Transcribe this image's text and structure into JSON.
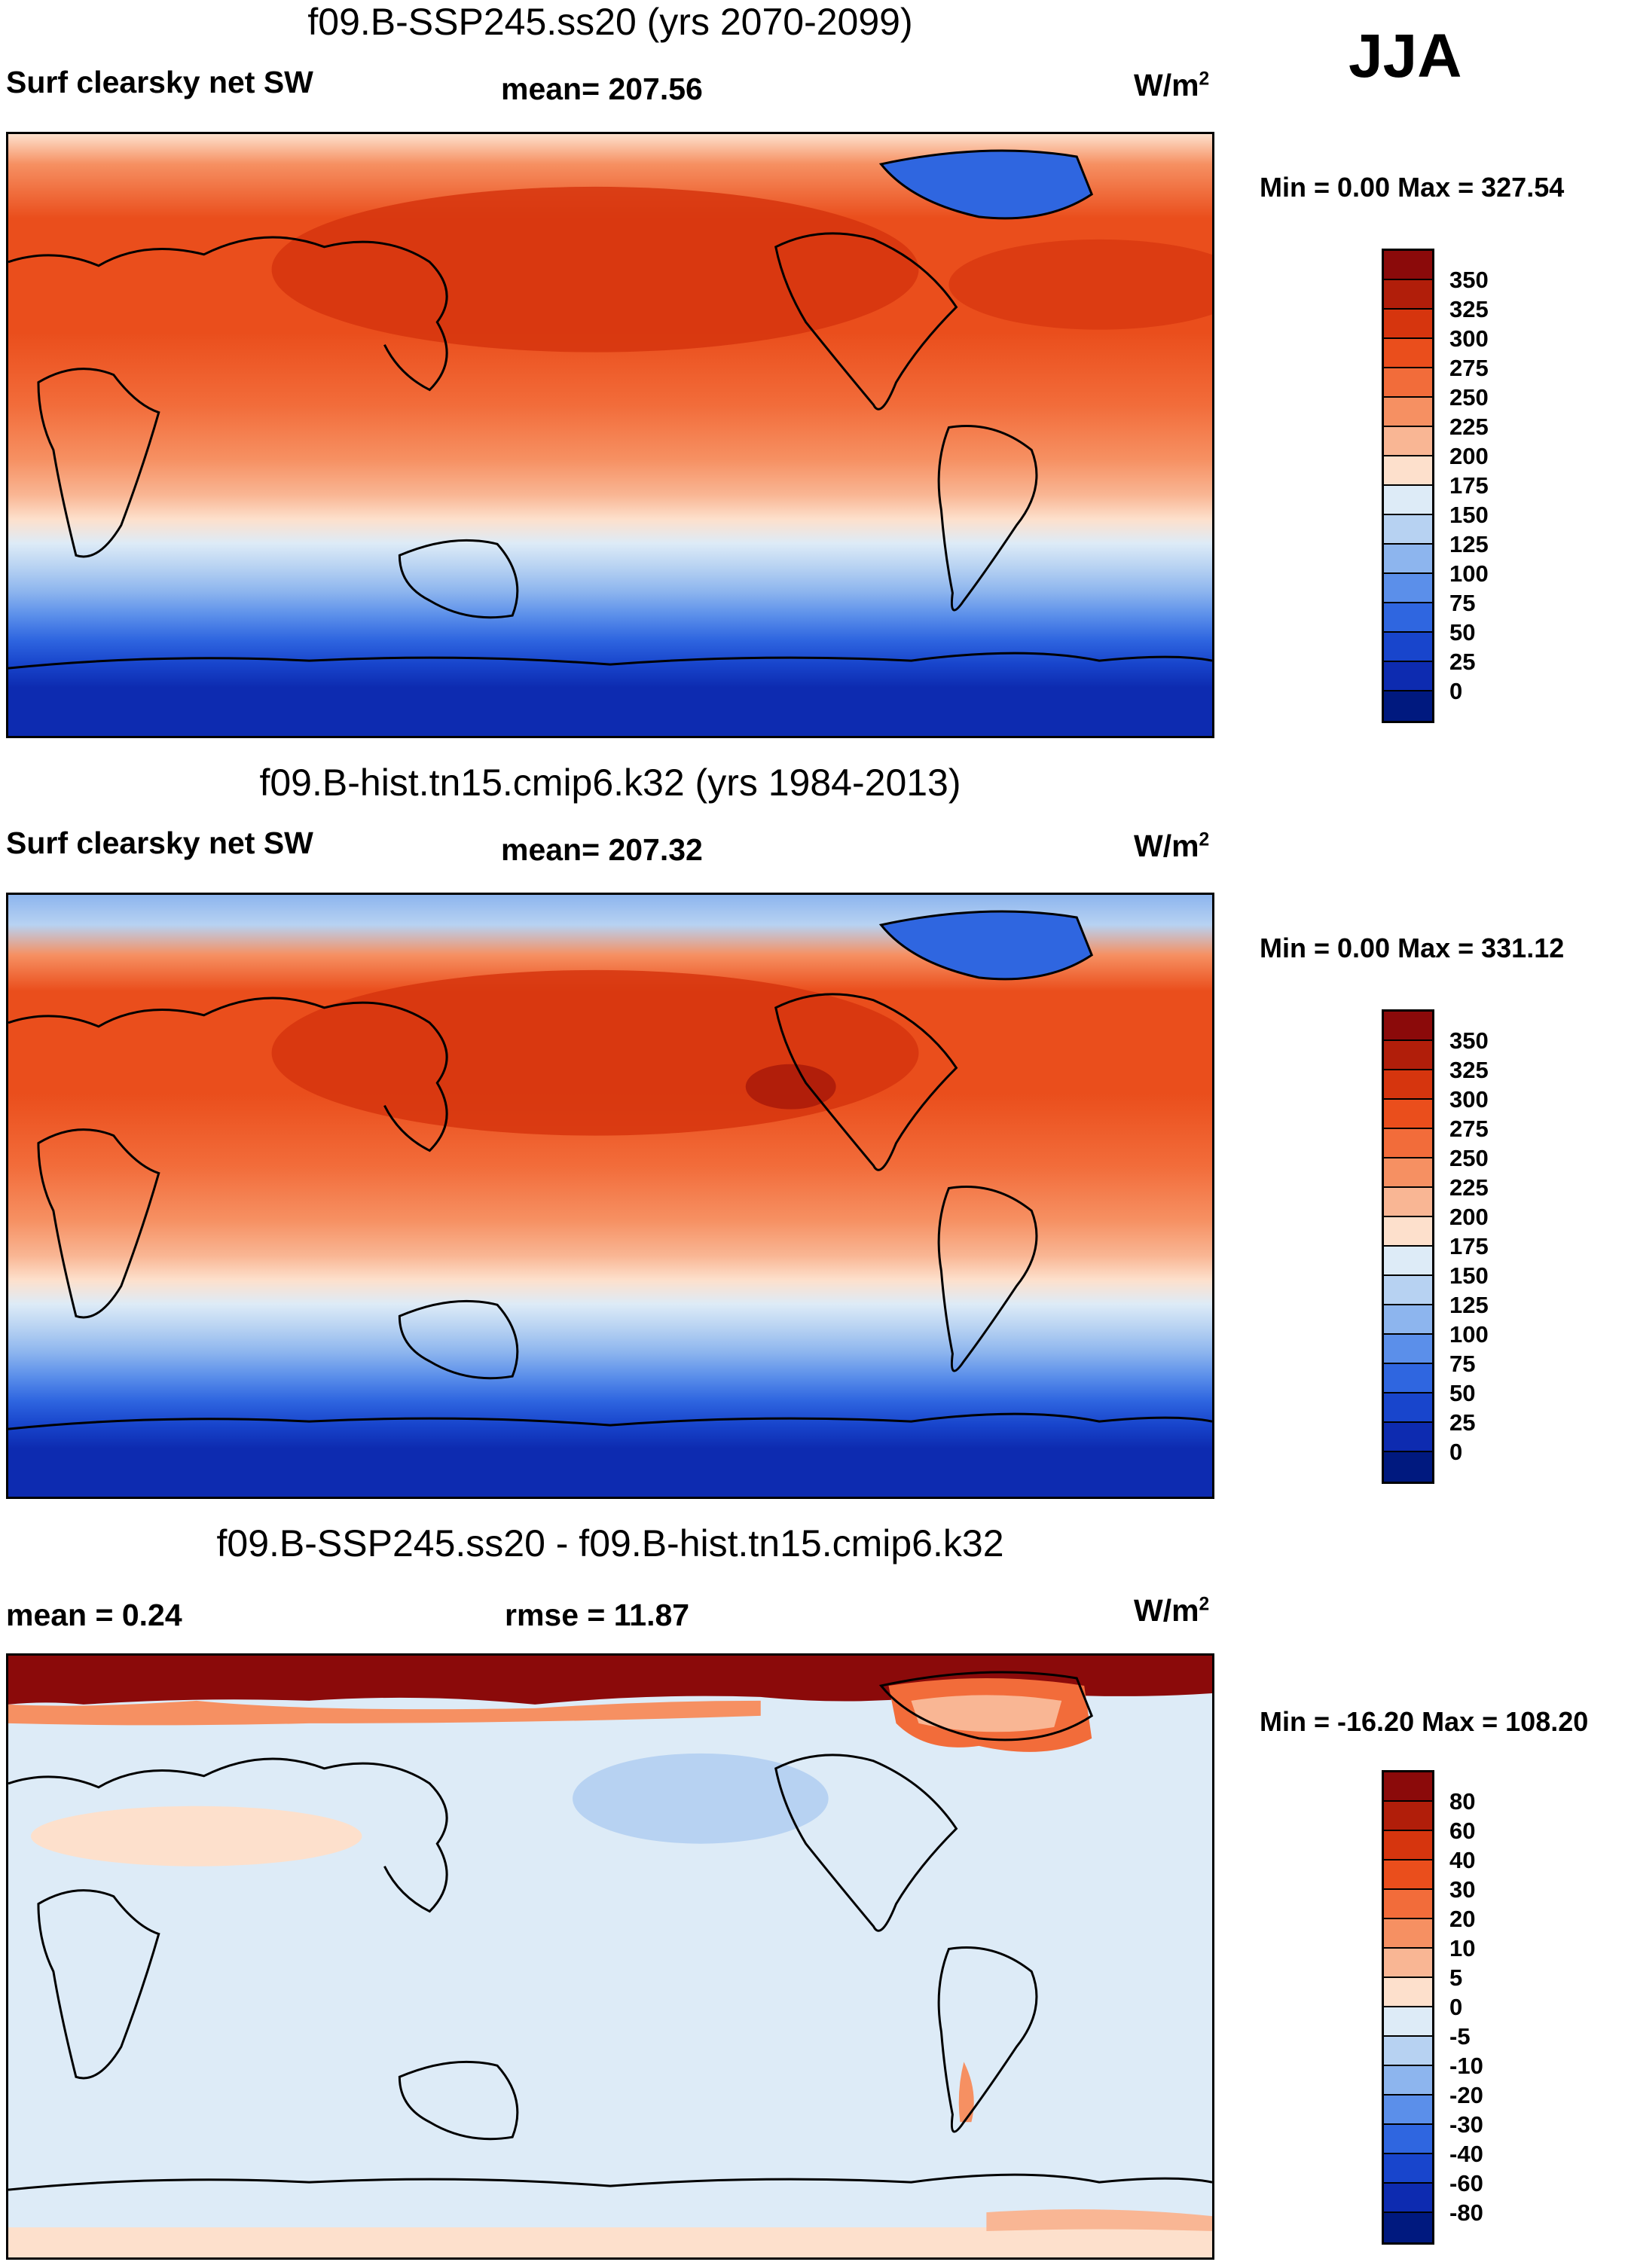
{
  "season": "JJA",
  "panels": [
    {
      "title": "f09.B-SSP245.ss20 (yrs 2070-2099)",
      "variable": "Surf clearsky net SW",
      "stat": "mean= 207.56",
      "units_base": "W/m",
      "units_exp": "2",
      "minmax": "Min =   0.00 Max = 327.54"
    },
    {
      "title": "f09.B-hist.tn15.cmip6.k32 (yrs 1984-2013)",
      "variable": "Surf clearsky net SW",
      "stat": "mean= 207.32",
      "units_base": "W/m",
      "units_exp": "2",
      "minmax": "Min =   0.00 Max = 331.12"
    },
    {
      "title": "f09.B-SSP245.ss20 - f09.B-hist.tn15.cmip6.k32",
      "variable": "mean =   0.24",
      "stat": "rmse =  11.87",
      "units_base": "W/m",
      "units_exp": "2",
      "minmax": "Min = -16.20 Max = 108.20"
    }
  ],
  "colorbars": {
    "absolute": {
      "labels": [
        "350",
        "325",
        "300",
        "275",
        "250",
        "225",
        "200",
        "175",
        "150",
        "125",
        "100",
        "75",
        "50",
        "25",
        "0"
      ],
      "colors": [
        "#8b0a0a",
        "#b11e0a",
        "#d6350e",
        "#ea4e1c",
        "#f26c3a",
        "#f69062",
        "#f9b694",
        "#fde0cc",
        "#ddebf7",
        "#b7d2f2",
        "#8db5ee",
        "#5b8fea",
        "#2f66e0",
        "#1845cc",
        "#0d2bb0",
        "#00197f"
      ]
    },
    "difference": {
      "labels": [
        "80",
        "60",
        "40",
        "30",
        "20",
        "10",
        "5",
        "0",
        "-5",
        "-10",
        "-20",
        "-30",
        "-40",
        "-60",
        "-80"
      ],
      "colors": [
        "#8b0a0a",
        "#b11e0a",
        "#d6350e",
        "#ea4e1c",
        "#f26c3a",
        "#f69062",
        "#f9b694",
        "#fde0cc",
        "#ddebf7",
        "#b7d2f2",
        "#8db5ee",
        "#5b8fea",
        "#2f66e0",
        "#1845cc",
        "#0d2bb0",
        "#00197f"
      ]
    }
  }
}
